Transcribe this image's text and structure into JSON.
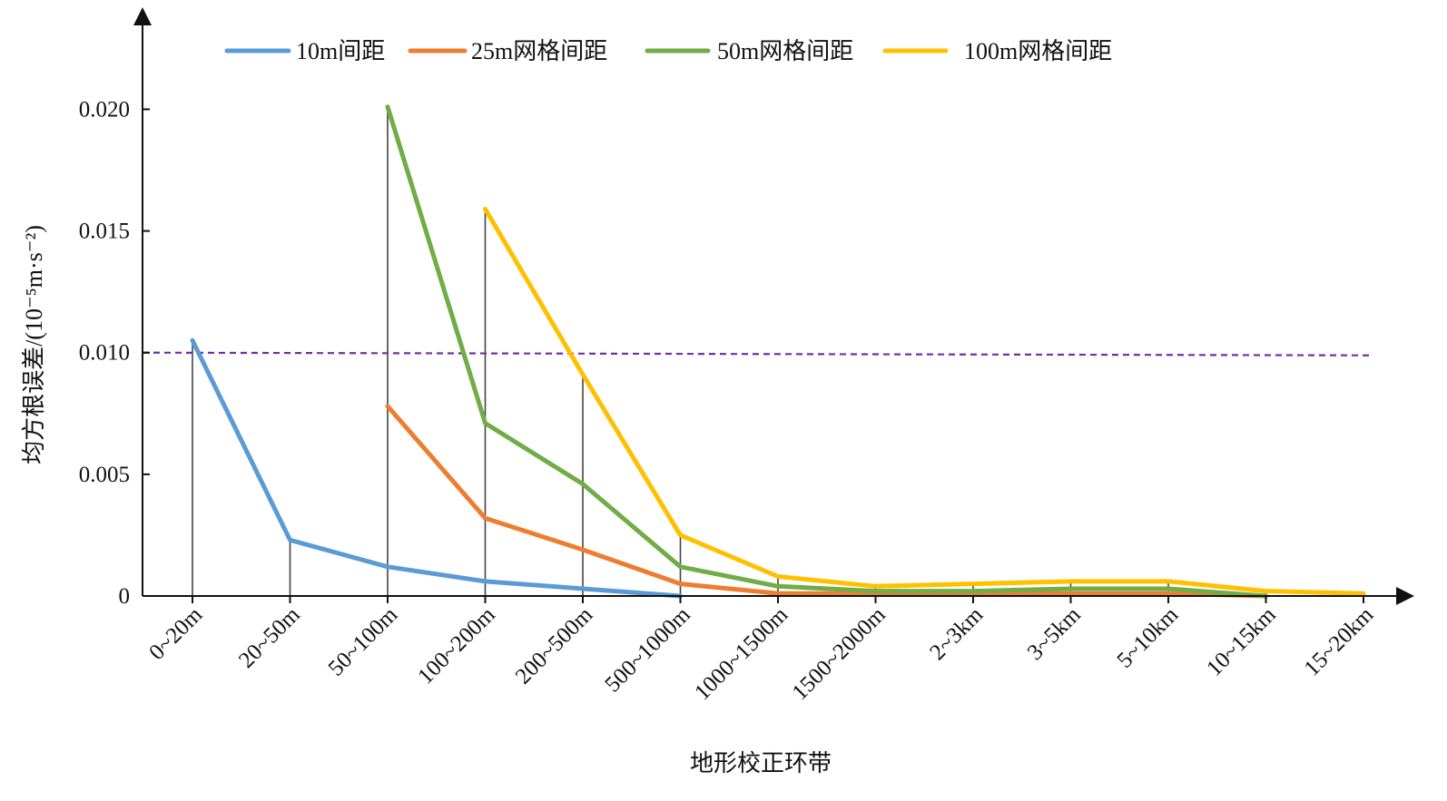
{
  "chart_data": {
    "type": "line",
    "categories": [
      "0~20m",
      "20~50m",
      "50~100m",
      "100~200m",
      "200~500m",
      "500~1000m",
      "1000~1500m",
      "1500~2000m",
      "2~3km",
      "3~5km",
      "5~10km",
      "10~15km",
      "15~20km"
    ],
    "series": [
      {
        "name": "10m间距",
        "color": "#5b9bd5",
        "values": [
          0.0105,
          0.0023,
          0.0012,
          0.0006,
          0.0003,
          0.0,
          null,
          null,
          null,
          null,
          null,
          null,
          null
        ]
      },
      {
        "name": "25m网格间距",
        "color": "#ed7d31",
        "values": [
          null,
          null,
          0.0078,
          0.0032,
          0.0019,
          0.0005,
          0.0001,
          0.0001,
          0.0001,
          0.0001,
          0.0001,
          0.0,
          null
        ]
      },
      {
        "name": "50m网格间距",
        "color": "#70ad47",
        "values": [
          null,
          null,
          0.0201,
          0.0071,
          0.0046,
          0.0012,
          0.0004,
          0.0002,
          0.0002,
          0.0003,
          0.0003,
          0.0,
          null
        ]
      },
      {
        "name": "100m网格间距",
        "color": "#ffc000",
        "values": [
          null,
          null,
          null,
          0.0159,
          0.0091,
          0.0025,
          0.0008,
          0.0004,
          0.0005,
          0.0006,
          0.0006,
          0.0002,
          0.0001
        ]
      }
    ],
    "drop_lines": [
      0.0105,
      0.0023,
      0.0201,
      0.0159,
      0.0091,
      0.0025,
      0.0008,
      0.0004,
      0.0005,
      0.0006,
      0.0006,
      0.0002,
      0.0001
    ],
    "reference_line": {
      "y": 0.01,
      "color": "#7030a0",
      "style": "dashed"
    },
    "yticks": [
      0,
      0.005,
      0.01,
      0.015,
      0.02
    ],
    "ytick_labels": [
      "0",
      "0.005",
      "0.010",
      "0.015",
      "0.020"
    ],
    "ylim": [
      0,
      0.023
    ],
    "ylabel": "均方根误差/(10⁻⁵m·s⁻²)",
    "xlabel": "地形校正环带",
    "title": "",
    "legend_position": "top",
    "grid": false
  }
}
